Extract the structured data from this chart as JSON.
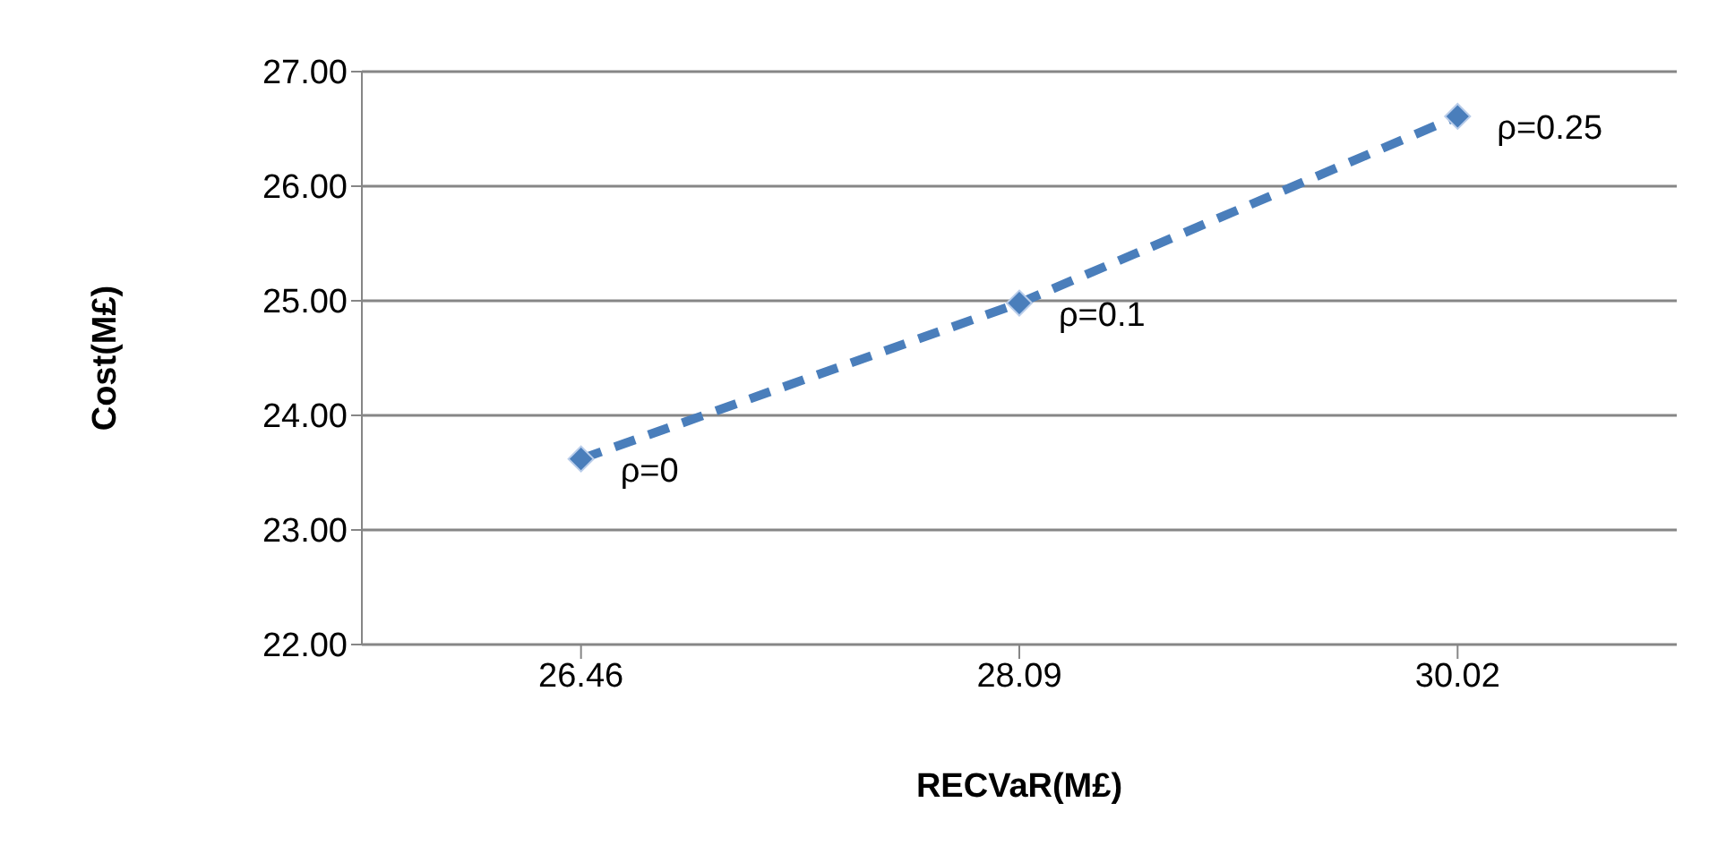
{
  "chart_data": {
    "type": "line",
    "xlabel": "RECVaR(M£)",
    "ylabel": "Cost(M£)",
    "categories": [
      "26.46",
      "28.09",
      "30.02"
    ],
    "series": [
      {
        "color": "#4a7ebb",
        "values": [
          23.62,
          24.98,
          26.61
        ]
      }
    ],
    "ylim": [
      22,
      27
    ],
    "yticks": [
      {
        "value": 22,
        "label": "22.00"
      },
      {
        "value": 23,
        "label": "23.00"
      },
      {
        "value": 24,
        "label": "24.00"
      },
      {
        "value": 25,
        "label": "25.00"
      },
      {
        "value": 26,
        "label": "26.00"
      },
      {
        "value": 27,
        "label": "27.00"
      }
    ],
    "grid": "y",
    "marker": "diamond",
    "line_style": "dashed",
    "annotations": [
      {
        "text": "ρ=0",
        "x": "26.46",
        "y": 23.62
      },
      {
        "text": "ρ=0.1",
        "x": "28.09",
        "y": 24.98
      },
      {
        "text": "ρ=0.25",
        "x": "30.02",
        "y": 26.61
      }
    ]
  }
}
